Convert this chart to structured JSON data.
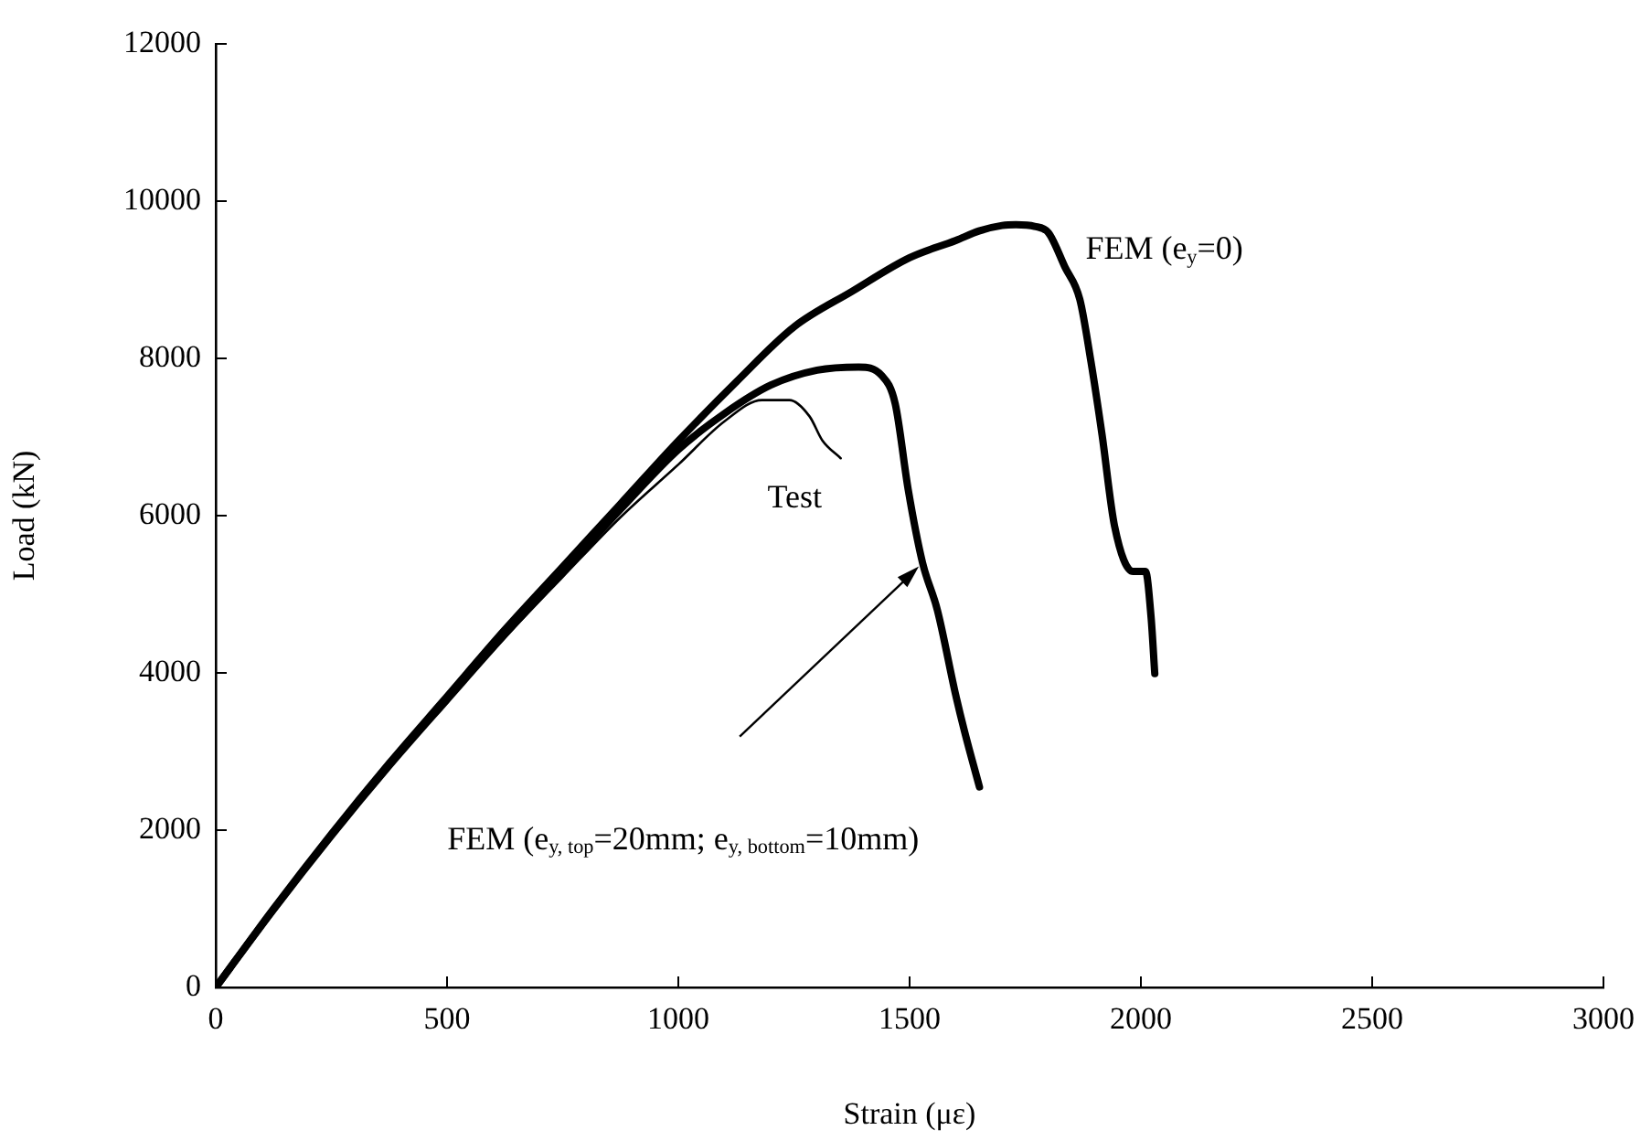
{
  "chart_data": {
    "type": "line",
    "xlabel": "Strain (με)",
    "ylabel": "Load (kN)",
    "xlim": [
      0,
      3000
    ],
    "xticks": [
      0,
      500,
      1000,
      1500,
      2000,
      2500,
      3000
    ],
    "ylim": [
      0,
      12000
    ],
    "yticks": [
      0,
      2000,
      4000,
      6000,
      8000,
      10000,
      12000
    ],
    "grid": false,
    "legend": false,
    "marker": "none",
    "line_style": "solid",
    "series": [
      {
        "name": "FEM (e$_{y}$=0)",
        "color": "#000000",
        "x": [
          0,
          125,
          250,
          375,
          500,
          625,
          750,
          875,
          1000,
          1125,
          1250,
          1375,
          1500,
          1600,
          1650,
          1700,
          1730,
          1770,
          1800,
          1836,
          1868,
          1892,
          1916,
          1943,
          1983,
          2010,
          2022,
          2030
        ],
        "values": [
          0,
          1000,
          1950,
          2850,
          3700,
          4550,
          5350,
          6150,
          6950,
          7700,
          8400,
          8850,
          9280,
          9500,
          9620,
          9690,
          9700,
          9680,
          9600,
          9160,
          8750,
          7960,
          7030,
          5870,
          5290,
          5290,
          4710,
          3990
        ]
      },
      {
        "name": "FEM (e$_{y, top}$=20mm; e$_{y, bottom}$=10mm)",
        "color": "#000000",
        "x": [
          0,
          125,
          250,
          375,
          500,
          625,
          750,
          875,
          1000,
          1100,
          1200,
          1300,
          1390,
          1440,
          1469,
          1497,
          1528,
          1560,
          1600,
          1619,
          1651
        ],
        "values": [
          0,
          990,
          1930,
          2820,
          3660,
          4490,
          5280,
          6080,
          6840,
          7300,
          7660,
          7850,
          7890,
          7780,
          7420,
          6330,
          5400,
          4800,
          3710,
          3250,
          2550
        ]
      },
      {
        "name": "Test",
        "color": "#000000",
        "x": [
          0,
          125,
          250,
          375,
          500,
          625,
          750,
          875,
          1000,
          1100,
          1181,
          1240,
          1284,
          1311,
          1351
        ],
        "values": [
          0,
          980,
          1900,
          2800,
          3640,
          4450,
          5220,
          5980,
          6650,
          7200,
          7470,
          7470,
          7260,
          6960,
          6730
        ]
      }
    ]
  }
}
